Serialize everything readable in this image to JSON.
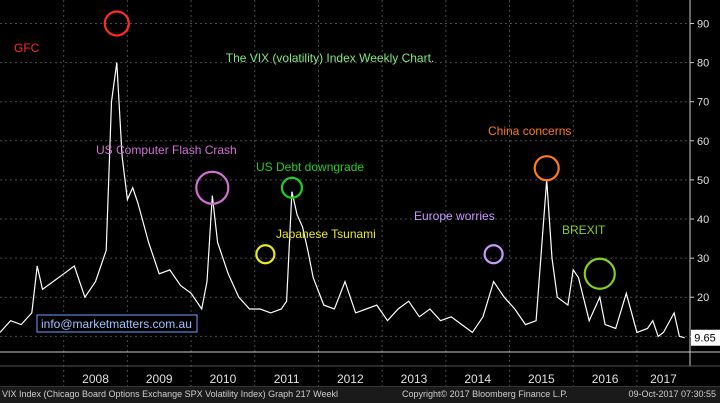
{
  "chart_data": {
    "type": "line",
    "title": "The VIX (volatility) Index Weekly Chart.",
    "xlabel": "",
    "ylabel": "",
    "x_tick_labels": [
      "2008",
      "2009",
      "2010",
      "2011",
      "2012",
      "2013",
      "2014",
      "2015",
      "2016",
      "2017"
    ],
    "xlim": [
      "2007-01",
      "2017-11"
    ],
    "y_ticks": [
      10,
      20,
      30,
      40,
      50,
      60,
      70,
      80,
      90
    ],
    "ylim": [
      6,
      96
    ],
    "axis_position": "right",
    "grid": true,
    "last_value_label": "9.65",
    "series": [
      {
        "color": "#ffffff",
        "x": [
          "2007-01",
          "2007-03",
          "2007-05",
          "2007-07",
          "2007-08",
          "2007-09",
          "2007-11",
          "2008-01",
          "2008-03",
          "2008-05",
          "2008-07",
          "2008-09",
          "2008-10",
          "2008-11",
          "2008-12",
          "2009-01",
          "2009-02",
          "2009-03",
          "2009-05",
          "2009-07",
          "2009-09",
          "2009-11",
          "2010-01",
          "2010-03",
          "2010-04",
          "2010-05",
          "2010-06",
          "2010-08",
          "2010-10",
          "2010-12",
          "2011-02",
          "2011-04",
          "2011-06",
          "2011-07",
          "2011-08",
          "2011-09",
          "2011-10",
          "2011-11",
          "2011-12",
          "2012-02",
          "2012-04",
          "2012-06",
          "2012-08",
          "2012-10",
          "2012-12",
          "2013-02",
          "2013-04",
          "2013-06",
          "2013-08",
          "2013-10",
          "2013-12",
          "2014-02",
          "2014-04",
          "2014-06",
          "2014-08",
          "2014-10",
          "2014-12",
          "2015-02",
          "2015-04",
          "2015-06",
          "2015-08",
          "2015-09",
          "2015-10",
          "2015-12",
          "2016-01",
          "2016-02",
          "2016-04",
          "2016-06",
          "2016-07",
          "2016-09",
          "2016-11",
          "2017-01",
          "2017-03",
          "2017-04",
          "2017-05",
          "2017-06",
          "2017-08",
          "2017-09",
          "2017-10"
        ],
        "values": [
          11,
          14,
          13,
          16,
          28,
          22,
          24,
          26,
          28,
          20,
          24,
          32,
          70,
          80,
          56,
          45,
          48,
          44,
          34,
          26,
          27,
          23,
          21,
          17,
          24,
          46,
          34,
          26,
          20,
          17,
          17,
          16,
          17,
          19,
          47,
          41,
          38,
          32,
          25,
          18,
          17,
          24,
          16,
          17,
          18,
          14,
          17,
          19,
          15,
          17,
          14,
          15,
          13,
          11,
          15,
          24,
          20,
          17,
          13,
          14,
          50,
          30,
          20,
          18,
          27,
          25,
          14,
          20,
          13,
          12,
          21,
          11,
          12,
          14,
          10,
          11,
          16,
          10,
          9.65
        ]
      }
    ],
    "annotations": [
      {
        "label": "GFC",
        "color": "#ff2a2a",
        "date": "2008-11",
        "value": 90
      },
      {
        "label": "US Computer Flash Crash",
        "color": "#d070d0",
        "date": "2010-05",
        "value": 48
      },
      {
        "label": "US Debt downgrade",
        "color": "#22cc22",
        "date": "2011-08",
        "value": 48
      },
      {
        "label": "Japanese Tsunami",
        "color": "#e8e820",
        "date": "2011-03",
        "value": 31
      },
      {
        "label": "Europe worries",
        "color": "#c898ff",
        "date": "2014-10",
        "value": 31
      },
      {
        "label": "China concerns",
        "color": "#ff7a1a",
        "date": "2015-08",
        "value": 53
      },
      {
        "label": "BREXIT",
        "color": "#88cc22",
        "date": "2016-06",
        "value": 26
      }
    ],
    "unlabeled_circles": [
      {
        "color": "#e8e820",
        "date": "2011-03",
        "value": 31
      }
    ],
    "watermark": "info@marketmatters.com.au"
  },
  "footer": {
    "left": "VIX Index (Chicago Board Options Exchange SPX Volatility Index) Graph 217 Weekl",
    "middle": "Copyright© 2017 Bloomberg Finance L.P.",
    "right": "09-Oct-2017 07:30:55"
  }
}
